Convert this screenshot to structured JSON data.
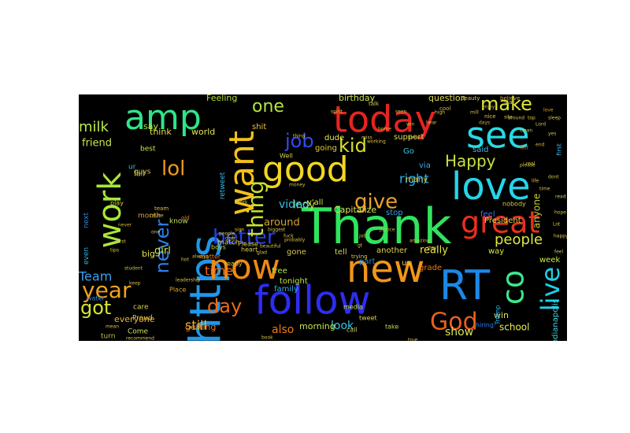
{
  "wordcloud": {
    "background": "#000000",
    "words": [
      {
        "text": "Thank",
        "color": "#2fe45c"
      },
      {
        "text": "https",
        "color": "#1f97ea"
      },
      {
        "text": "follow",
        "color": "#2d2df2"
      },
      {
        "text": "new",
        "color": "#f0961c"
      },
      {
        "text": "RT",
        "color": "#1c88e6"
      },
      {
        "text": "now",
        "color": "#ee8a14"
      },
      {
        "text": "today",
        "color": "#e62420"
      },
      {
        "text": "amp",
        "color": "#2ee68a"
      },
      {
        "text": "work",
        "color": "#a8e63a"
      },
      {
        "text": "want",
        "color": "#f2c01c"
      },
      {
        "text": "good",
        "color": "#f2d722"
      },
      {
        "text": "love",
        "color": "#25d5e8"
      },
      {
        "text": "see",
        "color": "#29d9e4"
      },
      {
        "text": "great",
        "color": "#e8301c"
      },
      {
        "text": "co",
        "color": "#3ce88c"
      },
      {
        "text": "God",
        "color": "#e8601c"
      },
      {
        "text": "year",
        "color": "#f0a21a"
      },
      {
        "text": "got",
        "color": "#d8e630"
      },
      {
        "text": "day",
        "color": "#ee6a16"
      },
      {
        "text": "live",
        "color": "#1fd0e6"
      },
      {
        "text": "better",
        "color": "#2640e6"
      },
      {
        "text": "thing",
        "color": "#c8e030"
      },
      {
        "text": "give",
        "color": "#eaa22a"
      },
      {
        "text": "job",
        "color": "#2f4cf0"
      },
      {
        "text": "kid",
        "color": "#d8e22a"
      },
      {
        "text": "lol",
        "color": "#ee9a1a"
      },
      {
        "text": "one",
        "color": "#b4e642"
      },
      {
        "text": "make",
        "color": "#dce63a"
      },
      {
        "text": "never",
        "color": "#2c7fe8"
      },
      {
        "text": "Happy",
        "color": "#c8e23c"
      },
      {
        "text": "people",
        "color": "#dce640"
      },
      {
        "text": "milk",
        "color": "#b8e850"
      },
      {
        "text": "right",
        "color": "#2cb0f0"
      },
      {
        "text": "Team",
        "color": "#3aa0ef"
      },
      {
        "text": "still",
        "color": "#e8b42c"
      },
      {
        "text": "time",
        "color": "#ee6e14"
      },
      {
        "text": "also",
        "color": "#ec7a14"
      },
      {
        "text": "look",
        "color": "#32c6e8"
      },
      {
        "text": "school",
        "color": "#e8ee48"
      },
      {
        "text": "show",
        "color": "#dce454"
      },
      {
        "text": "Indy",
        "color": "#b6e63c"
      },
      {
        "text": "video",
        "color": "#38c4ea"
      },
      {
        "text": "around",
        "color": "#d6a428"
      },
      {
        "text": "girl",
        "color": "#cce84a"
      },
      {
        "text": "really",
        "color": "#e4e640"
      },
      {
        "text": "win",
        "color": "#dce658"
      },
      {
        "text": "everyone",
        "color": "#e8b23a"
      },
      {
        "text": "getting",
        "color": "#ec7a20"
      },
      {
        "text": "morning",
        "color": "#c8e650"
      },
      {
        "text": "Indianapolis",
        "color": "#44d0e0"
      },
      {
        "text": "anyone",
        "color": "#c8cd38"
      },
      {
        "text": "Feeling",
        "color": "#b8dc3a"
      },
      {
        "text": "question",
        "color": "#dcd85a"
      },
      {
        "text": "birthday",
        "color": "#cde650"
      },
      {
        "text": "Capitalize",
        "color": "#d6e654"
      },
      {
        "text": "friend",
        "color": "#c8e650"
      },
      {
        "text": "think",
        "color": "#dce03e"
      },
      {
        "text": "world",
        "color": "#dce64a"
      },
      {
        "text": "say",
        "color": "#b6e248"
      },
      {
        "text": "shit",
        "color": "#e8c23a"
      },
      {
        "text": "dude",
        "color": "#ece84c"
      },
      {
        "text": "big",
        "color": "#e8e04a"
      },
      {
        "text": "grade",
        "color": "#e87a18"
      },
      {
        "text": "tonight",
        "color": "#c2e43c"
      },
      {
        "text": "free",
        "color": "#b0e650"
      },
      {
        "text": "gone",
        "color": "#d4c850"
      },
      {
        "text": "family",
        "color": "#38b0e0"
      },
      {
        "text": "part",
        "color": "#1f8ae0"
      },
      {
        "text": "us",
        "color": "#dcd452"
      },
      {
        "text": "feel",
        "color": "#3c6ee8"
      },
      {
        "text": "President",
        "color": "#e2d24a"
      },
      {
        "text": "week",
        "color": "#c8e84c"
      },
      {
        "text": "way",
        "color": "#dce644"
      },
      {
        "text": "tell",
        "color": "#ccd84a"
      },
      {
        "text": "another",
        "color": "#e4d44c"
      },
      {
        "text": "many",
        "color": "#d4c846"
      },
      {
        "text": "stop",
        "color": "#34a4e8"
      },
      {
        "text": "y'all",
        "color": "#dce248"
      },
      {
        "text": "going",
        "color": "#e2cc3a"
      },
      {
        "text": "support",
        "color": "#dcd84a"
      },
      {
        "text": "Go",
        "color": "#3ac8e0"
      },
      {
        "text": "via",
        "color": "#3aa8e8"
      },
      {
        "text": "said",
        "color": "#3cbce0"
      },
      {
        "text": "best",
        "color": "#cce44c"
      },
      {
        "text": "month",
        "color": "#d4a040"
      },
      {
        "text": "ur",
        "color": "#2ec0e0"
      },
      {
        "text": "guys",
        "color": "#e2c04c"
      },
      {
        "text": "fall",
        "color": "#c8d850"
      },
      {
        "text": "next",
        "color": "#2c8ce0"
      },
      {
        "text": "even",
        "color": "#2cb8e6"
      },
      {
        "text": "retweet",
        "color": "#3cb8e8"
      },
      {
        "text": "know",
        "color": "#c0e058"
      },
      {
        "text": "match",
        "color": "#e0d044"
      },
      {
        "text": "Come",
        "color": "#cce458"
      },
      {
        "text": "Proud",
        "color": "#e2c24a"
      },
      {
        "text": "care",
        "color": "#dcd44c"
      },
      {
        "text": "turn",
        "color": "#c8c04a"
      },
      {
        "text": "ready",
        "color": "#e0c440"
      },
      {
        "text": "Please",
        "color": "#dccc48"
      },
      {
        "text": "tweet",
        "color": "#dcd050"
      },
      {
        "text": "media",
        "color": "#c4e44c"
      },
      {
        "text": "call",
        "color": "#d4c64a"
      },
      {
        "text": "take",
        "color": "#c0d84a"
      },
      {
        "text": "Well",
        "color": "#dcd04c"
      },
      {
        "text": "Place",
        "color": "#e0a030"
      },
      {
        "text": "matter",
        "color": "#e07818"
      },
      {
        "text": "boys",
        "color": "#c8dc4c"
      },
      {
        "text": "heart",
        "color": "#dccc50"
      },
      {
        "text": "trying",
        "color": "#dccc48"
      },
      {
        "text": "first",
        "color": "#3cb8e4"
      },
      {
        "text": "water",
        "color": "#2890e0"
      },
      {
        "text": "play",
        "color": "#d4c84c"
      },
      {
        "text": "hiring",
        "color": "#2c80e0"
      },
      {
        "text": "Trump",
        "color": "#2cb4e4"
      },
      {
        "text": "nobody",
        "color": "#d8c84c"
      },
      {
        "text": "beauty",
        "color": "#d8cc4c"
      },
      {
        "text": "believe",
        "color": "#d8a440"
      },
      {
        "text": "talk",
        "color": "#dcd048"
      },
      {
        "text": "cool",
        "color": "#d8b840"
      },
      {
        "text": "nice",
        "color": "#e0c44a"
      },
      {
        "text": "star",
        "color": "#d4c04a"
      },
      {
        "text": "days",
        "color": "#e0a430"
      },
      {
        "text": "home",
        "color": "#d8b43c"
      },
      {
        "text": "win",
        "color": "#d0c448"
      },
      {
        "text": "last",
        "color": "#e07020"
      },
      {
        "text": "end",
        "color": "#d8b83c"
      },
      {
        "text": "yes",
        "color": "#d0c04a"
      },
      {
        "text": "high",
        "color": "#dcc448"
      },
      {
        "text": "mill",
        "color": "#e0c040"
      },
      {
        "text": "hear",
        "color": "#d4c448"
      },
      {
        "text": "enjoy",
        "color": "#d0c44a"
      },
      {
        "text": "site",
        "color": "#c8c84c"
      },
      {
        "text": "clean",
        "color": "#dcc848"
      },
      {
        "text": "dont",
        "color": "#d0c44c"
      },
      {
        "text": "love",
        "color": "#e0a030"
      },
      {
        "text": "time",
        "color": "#d8c048"
      },
      {
        "text": "life",
        "color": "#e0c448"
      },
      {
        "text": "real",
        "color": "#d8bc44"
      },
      {
        "text": "please",
        "color": "#d4c84c"
      },
      {
        "text": "team",
        "color": "#dcc448"
      },
      {
        "text": "old",
        "color": "#e08020"
      },
      {
        "text": "one",
        "color": "#d8c84a"
      },
      {
        "text": "never",
        "color": "#d4b844"
      },
      {
        "text": "first",
        "color": "#d0c448"
      },
      {
        "text": "tips",
        "color": "#d8c84c"
      },
      {
        "text": "student",
        "color": "#c4c448"
      },
      {
        "text": "keep",
        "color": "#d4bc44"
      },
      {
        "text": "people",
        "color": "#d8c84a"
      },
      {
        "text": "club",
        "color": "#dcb844"
      },
      {
        "text": "probably",
        "color": "#d4c048"
      },
      {
        "text": "money",
        "color": "#d0c04a"
      },
      {
        "text": "thing",
        "color": "#e0c448"
      },
      {
        "text": "gt",
        "color": "#d4c448"
      },
      {
        "text": "justice",
        "color": "#d0c448"
      },
      {
        "text": "beautiful",
        "color": "#d8c44a"
      },
      {
        "text": "biggest",
        "color": "#d4c048"
      },
      {
        "text": "sign",
        "color": "#dcbc44"
      },
      {
        "text": "work",
        "color": "#d8c448"
      },
      {
        "text": "hot",
        "color": "#d4c448"
      },
      {
        "text": "always",
        "color": "#d8c048"
      },
      {
        "text": "leadership",
        "color": "#dcc048"
      },
      {
        "text": "glad",
        "color": "#d0c44c"
      },
      {
        "text": "amazing",
        "color": "#d4c448"
      },
      {
        "text": "stay",
        "color": "#dcc048"
      },
      {
        "text": "true",
        "color": "#d8c448"
      },
      {
        "text": "book",
        "color": "#d4c448"
      },
      {
        "text": "recommend",
        "color": "#d8c448"
      },
      {
        "text": "mean",
        "color": "#dcc048"
      },
      {
        "text": "cause",
        "color": "#d8c448"
      },
      {
        "text": "fuck",
        "color": "#d4c448"
      },
      {
        "text": "job",
        "color": "#d8c448"
      },
      {
        "text": "miss",
        "color": "#d4c448"
      },
      {
        "text": "working",
        "color": "#d8c448"
      },
      {
        "text": "spirit",
        "color": "#d0c048"
      },
      {
        "text": "seen",
        "color": "#d4c448"
      },
      {
        "text": "live",
        "color": "#dcc448"
      },
      {
        "text": "around",
        "color": "#d4c448"
      },
      {
        "text": "top",
        "color": "#d8c448"
      },
      {
        "text": "Lord",
        "color": "#d8c448"
      },
      {
        "text": "sleep",
        "color": "#d4c448"
      },
      {
        "text": "read",
        "color": "#d8c448"
      },
      {
        "text": "hope",
        "color": "#d4c448"
      },
      {
        "text": "Lot",
        "color": "#d0c448"
      },
      {
        "text": "happy",
        "color": "#dcc448"
      },
      {
        "text": "feel",
        "color": "#d8c448"
      },
      {
        "text": "look",
        "color": "#d4c448"
      },
      {
        "text": "another",
        "color": "#d8c448"
      },
      {
        "text": "two",
        "color": "#d4c448"
      },
      {
        "text": "way",
        "color": "#dcc448"
      },
      {
        "text": "game",
        "color": "#d8c448"
      },
      {
        "text": "shit",
        "color": "#d0c448"
      },
      {
        "text": "man",
        "color": "#d4c448"
      },
      {
        "text": "men",
        "color": "#d8c448"
      }
    ]
  }
}
